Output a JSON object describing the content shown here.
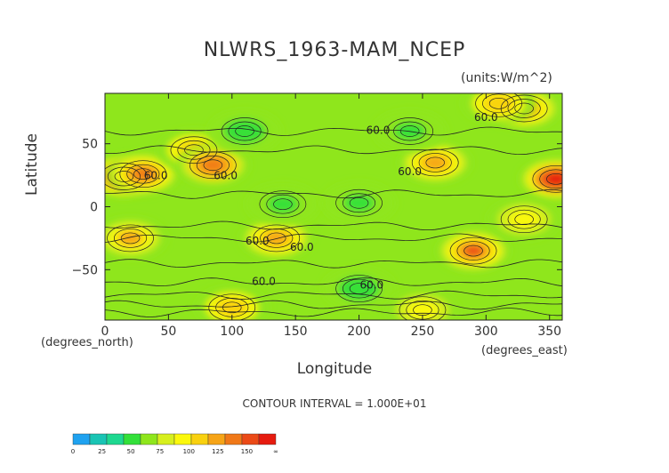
{
  "chart_data": {
    "type": "heatmap",
    "title": "NLWRS_1963-MAM_NCEP",
    "units": "(units:W/m^2)",
    "xlabel": "Longitude",
    "ylabel": "Latitude",
    "x_unit_label": "(degrees_east)",
    "y_unit_label": "(degrees_north)",
    "xlim": [
      0,
      360
    ],
    "ylim": [
      -90,
      90
    ],
    "x_ticks": [
      "0",
      "50",
      "100",
      "150",
      "200",
      "250",
      "300",
      "350"
    ],
    "y_ticks": [
      "50",
      "0",
      "−50"
    ],
    "contour_interval": "CONTOUR INTERVAL = 1.000E+01",
    "contour_labels": [
      "60.0",
      "60.0",
      "60.0",
      "60.0",
      "60.0",
      "60.0",
      "60.0",
      "60.0",
      "60.0"
    ],
    "colorbar": {
      "tick_labels": [
        "0",
        "25",
        "50",
        "75",
        "100",
        "125",
        "150",
        "∞"
      ],
      "colors": [
        "#1fa2f0",
        "#19c4b4",
        "#1ed890",
        "#33e03a",
        "#8fe61c",
        "#d7ef1e",
        "#fbf80c",
        "#f9d10f",
        "#f6a417",
        "#f07818",
        "#eb4a17",
        "#e61b0f"
      ]
    },
    "field": {
      "background_value": 60,
      "anomalies": [
        {
          "lon": 15,
          "lat": 24,
          "value": 150
        },
        {
          "lon": 30,
          "lat": 26,
          "value": 120
        },
        {
          "lon": 70,
          "lat": 45,
          "value": 90
        },
        {
          "lon": 85,
          "lat": 33,
          "value": 115
        },
        {
          "lon": 260,
          "lat": 35,
          "value": 110
        },
        {
          "lon": 355,
          "lat": 22,
          "value": 140
        },
        {
          "lon": 330,
          "lat": 78,
          "value": 110
        },
        {
          "lon": 310,
          "lat": 82,
          "value": 90
        },
        {
          "lon": 135,
          "lat": -25,
          "value": 105
        },
        {
          "lon": 20,
          "lat": -25,
          "value": 100
        },
        {
          "lon": 290,
          "lat": -35,
          "value": 125
        },
        {
          "lon": 330,
          "lat": -10,
          "value": 80
        },
        {
          "lon": 140,
          "lat": 2,
          "value": 40
        },
        {
          "lon": 200,
          "lat": 3,
          "value": 40
        },
        {
          "lon": 110,
          "lat": 60,
          "value": 45
        },
        {
          "lon": 240,
          "lat": 60,
          "value": 40
        },
        {
          "lon": 200,
          "lat": -65,
          "value": 45
        },
        {
          "lon": 100,
          "lat": -80,
          "value": 90
        },
        {
          "lon": 250,
          "lat": -82,
          "value": 85
        }
      ]
    }
  }
}
